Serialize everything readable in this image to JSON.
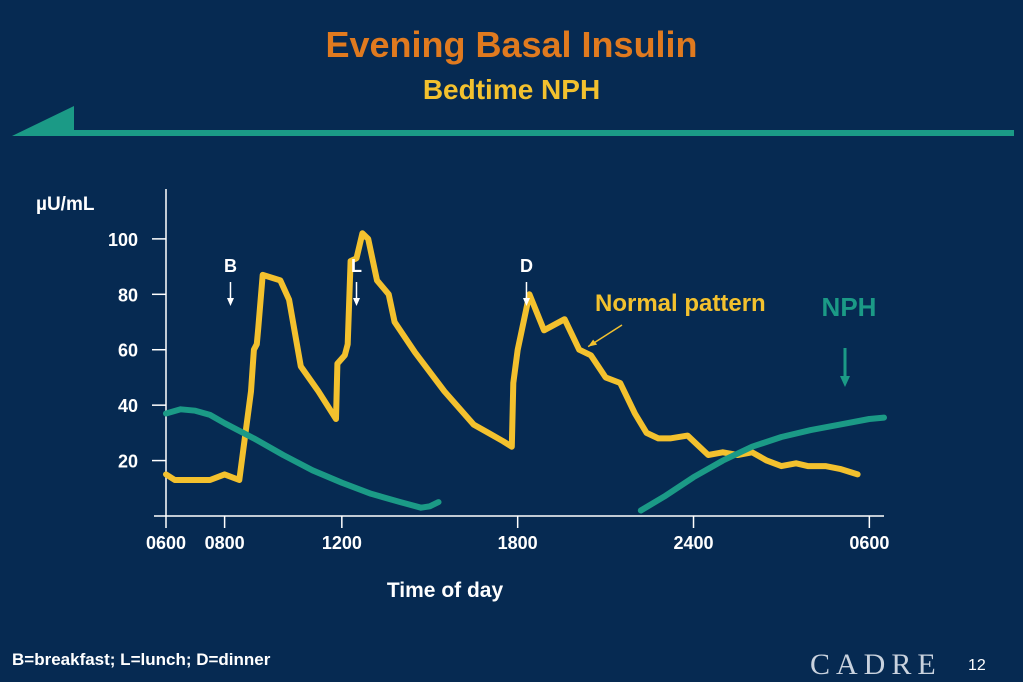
{
  "slide": {
    "title": "Evening Basal Insulin",
    "subtitle": "Bedtime NPH",
    "footnote": "B=breakfast; L=lunch; D=dinner",
    "logo_text": "CADRE",
    "page_number": "12"
  },
  "colors": {
    "background": "#062a52",
    "title": "#e07a1f",
    "subtitle": "#f3c12e",
    "normal_pattern": "#f3c12e",
    "nph": "#1b9a86",
    "axis": "#ffffff"
  },
  "chart_data": {
    "type": "line",
    "title": "",
    "ylabel": "µU/mL",
    "xlabel": "Time of day",
    "x_unit": "hours",
    "xlim": [
      6,
      30.5
    ],
    "ylim": [
      0,
      118
    ],
    "yticks": [
      20,
      40,
      60,
      80,
      100
    ],
    "xticks": [
      {
        "value": 6,
        "label": "0600"
      },
      {
        "value": 8,
        "label": "0800"
      },
      {
        "value": 12,
        "label": "1200"
      },
      {
        "value": 18,
        "label": "1800"
      },
      {
        "value": 24,
        "label": "2400"
      },
      {
        "value": 30,
        "label": "0600"
      }
    ],
    "grid": false,
    "markers": [
      {
        "label": "B",
        "x": 8.2
      },
      {
        "label": "L",
        "x": 12.5
      },
      {
        "label": "D",
        "x": 18.3
      }
    ],
    "series": [
      {
        "name": "Normal pattern",
        "color": "#f3c12e",
        "points": [
          [
            6.0,
            15
          ],
          [
            6.3,
            13
          ],
          [
            7.5,
            13
          ],
          [
            8.0,
            15
          ],
          [
            8.5,
            13
          ],
          [
            8.9,
            45
          ],
          [
            9.0,
            60
          ],
          [
            9.1,
            62
          ],
          [
            9.15,
            68
          ],
          [
            9.3,
            87
          ],
          [
            9.9,
            85
          ],
          [
            10.2,
            78
          ],
          [
            10.6,
            54
          ],
          [
            11.2,
            45
          ],
          [
            11.8,
            35
          ],
          [
            11.85,
            55
          ],
          [
            12.1,
            58
          ],
          [
            12.2,
            62
          ],
          [
            12.3,
            92
          ],
          [
            12.5,
            93
          ],
          [
            12.7,
            102
          ],
          [
            12.9,
            100
          ],
          [
            13.2,
            85
          ],
          [
            13.6,
            80
          ],
          [
            13.8,
            70
          ],
          [
            14.5,
            59
          ],
          [
            15.5,
            45
          ],
          [
            16.5,
            33
          ],
          [
            17.0,
            30
          ],
          [
            17.5,
            27
          ],
          [
            17.8,
            25
          ],
          [
            17.85,
            48
          ],
          [
            18.0,
            60
          ],
          [
            18.4,
            80
          ],
          [
            18.9,
            67
          ],
          [
            19.6,
            71
          ],
          [
            20.1,
            60
          ],
          [
            20.5,
            58
          ],
          [
            21.0,
            50
          ],
          [
            21.5,
            48
          ],
          [
            22.0,
            37
          ],
          [
            22.4,
            30
          ],
          [
            22.8,
            28
          ],
          [
            23.2,
            28
          ],
          [
            23.8,
            29
          ],
          [
            24.5,
            22
          ],
          [
            25.0,
            23
          ],
          [
            25.5,
            22
          ],
          [
            26.0,
            23
          ],
          [
            26.5,
            20
          ],
          [
            27.0,
            18
          ],
          [
            27.5,
            19
          ],
          [
            27.9,
            18
          ],
          [
            28.5,
            18
          ],
          [
            29.0,
            17
          ],
          [
            29.6,
            15
          ]
        ]
      },
      {
        "name": "NPH",
        "color": "#1b9a86",
        "points": [
          [
            6.0,
            37
          ],
          [
            6.5,
            38.5
          ],
          [
            7.0,
            38
          ],
          [
            7.5,
            36.5
          ],
          [
            8.0,
            33.5
          ],
          [
            9.0,
            28
          ],
          [
            10.0,
            22
          ],
          [
            11.0,
            16.5
          ],
          [
            12.0,
            12
          ],
          [
            13.0,
            8
          ],
          [
            14.0,
            5
          ],
          [
            14.7,
            3
          ],
          [
            15.0,
            3.5
          ],
          [
            15.3,
            5
          ]
        ],
        "points_2": [
          [
            22.2,
            2
          ],
          [
            23.0,
            7
          ],
          [
            24.0,
            14
          ],
          [
            25.0,
            20
          ],
          [
            26.0,
            25
          ],
          [
            27.0,
            28.5
          ],
          [
            28.0,
            31
          ],
          [
            29.0,
            33
          ],
          [
            30.0,
            35
          ],
          [
            30.5,
            35.5
          ]
        ]
      }
    ],
    "annotations": [
      {
        "text": "Normal pattern",
        "color": "#f3c12e",
        "points_to": [
          20.2,
          64
        ]
      },
      {
        "text": "NPH",
        "color": "#1b9a86",
        "points_to": [
          29.3,
          47
        ]
      }
    ]
  }
}
